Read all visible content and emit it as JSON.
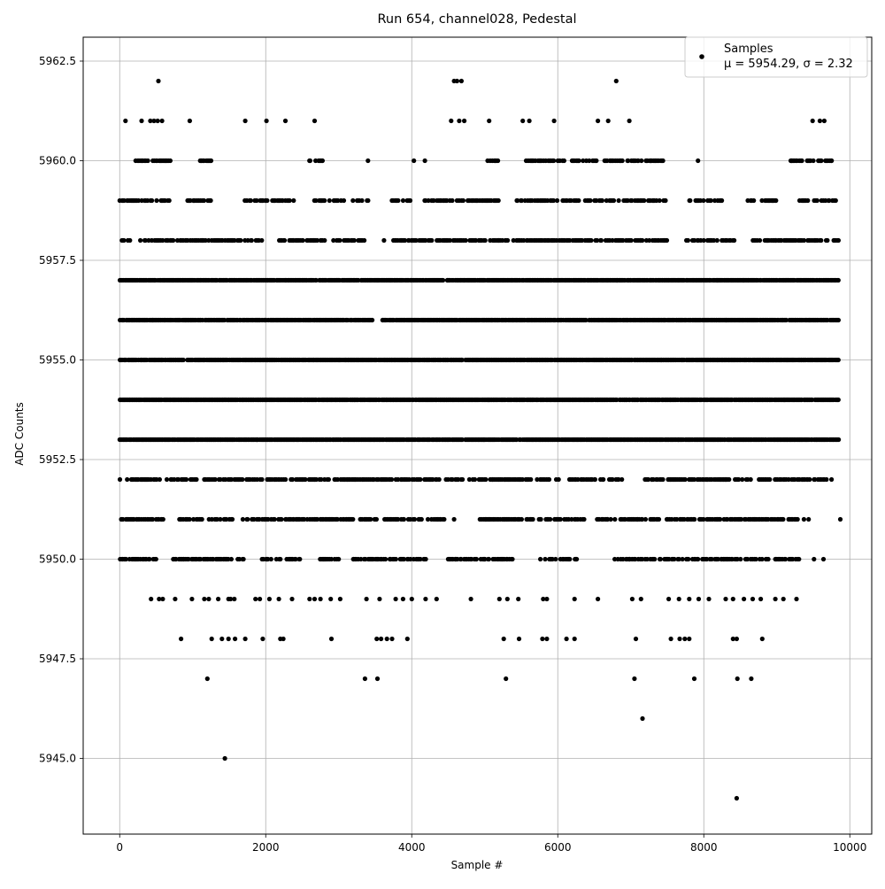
{
  "chart_data": {
    "type": "scatter",
    "title": "Run 654, channel028, Pedestal",
    "xlabel": "Sample #",
    "ylabel": "ADC Counts",
    "xlim": [
      -500,
      10300
    ],
    "ylim": [
      5943.1,
      5963.1
    ],
    "xticks": [
      0,
      2000,
      4000,
      6000,
      8000,
      10000
    ],
    "xtick_labels": [
      "0",
      "2000",
      "4000",
      "6000",
      "8000",
      "10000"
    ],
    "yticks": [
      5945.0,
      5947.5,
      5950.0,
      5952.5,
      5955.0,
      5957.5,
      5960.0,
      5962.5
    ],
    "ytick_labels": [
      "5945.0",
      "5947.5",
      "5950.0",
      "5952.5",
      "5955.0",
      "5957.5",
      "5960.0",
      "5962.5"
    ],
    "grid": true,
    "marker_color": "#000000",
    "legend": {
      "position": "top-right",
      "label": "Samples",
      "stats": "μ = 5954.29, σ = 2.32"
    },
    "sample_count": 9850,
    "summary": {
      "mean": 5954.29,
      "sigma": 2.32
    },
    "series": [
      {
        "name": "Samples",
        "points": [
          [
            530,
            5962
          ],
          [
            4580,
            5962
          ],
          [
            4620,
            5962
          ],
          [
            4680,
            5962
          ],
          [
            6800,
            5962
          ],
          [
            80,
            5961
          ],
          [
            300,
            5961
          ],
          [
            420,
            5961
          ],
          [
            470,
            5961
          ],
          [
            520,
            5961
          ],
          [
            580,
            5961
          ],
          [
            960,
            5961
          ],
          [
            1720,
            5961
          ],
          [
            2010,
            5961
          ],
          [
            2270,
            5961
          ],
          [
            2670,
            5961
          ],
          [
            4540,
            5961
          ],
          [
            4650,
            5961
          ],
          [
            4720,
            5961
          ],
          [
            5060,
            5961
          ],
          [
            5520,
            5961
          ],
          [
            5610,
            5961
          ],
          [
            5950,
            5961
          ],
          [
            6550,
            5961
          ],
          [
            6690,
            5961
          ],
          [
            6980,
            5961
          ],
          [
            9490,
            5961
          ],
          [
            9590,
            5961
          ],
          [
            9650,
            5961
          ],
          [
            2740,
            5960
          ],
          [
            3400,
            5960
          ],
          [
            4030,
            5960
          ],
          [
            4180,
            5960
          ],
          [
            5040,
            5960
          ],
          [
            5180,
            5960
          ],
          [
            7270,
            5960
          ],
          [
            7920,
            5960
          ],
          [
            9200,
            5960
          ],
          [
            1010,
            5959
          ],
          [
            2230,
            5959
          ],
          [
            2760,
            5959
          ],
          [
            3950,
            5959
          ],
          [
            4830,
            5959
          ],
          [
            5620,
            5959
          ],
          [
            7000,
            5959
          ],
          [
            8150,
            5959
          ],
          [
            8950,
            5959
          ],
          [
            1550,
            5958
          ],
          [
            2210,
            5958
          ],
          [
            3620,
            5958
          ],
          [
            3750,
            5958
          ],
          [
            4870,
            5958
          ],
          [
            7130,
            5958
          ],
          [
            8400,
            5958
          ],
          [
            8870,
            5958
          ],
          [
            4490,
            5957
          ],
          [
            6810,
            5957
          ],
          [
            8190,
            5957
          ],
          [
            8550,
            5957
          ],
          [
            450,
            5956
          ],
          [
            3600,
            5956
          ],
          [
            8310,
            5956
          ],
          [
            2100,
            5955
          ],
          [
            4680,
            5955
          ],
          [
            7420,
            5955
          ],
          [
            3220,
            5954
          ],
          [
            5050,
            5954
          ],
          [
            9110,
            5954
          ],
          [
            1880,
            5953
          ],
          [
            4990,
            5953
          ],
          [
            7650,
            5953
          ],
          [
            1160,
            5952
          ],
          [
            3480,
            5952
          ],
          [
            4790,
            5952
          ],
          [
            8300,
            5952
          ],
          [
            9750,
            5952
          ],
          [
            500,
            5951
          ],
          [
            1900,
            5951
          ],
          [
            4350,
            5951
          ],
          [
            4580,
            5951
          ],
          [
            5960,
            5951
          ],
          [
            6310,
            5951
          ],
          [
            6680,
            5951
          ],
          [
            7090,
            5951
          ],
          [
            8120,
            5951
          ],
          [
            9870,
            5951
          ],
          [
            40,
            5950
          ],
          [
            200,
            5950
          ],
          [
            460,
            5950
          ],
          [
            880,
            5950
          ],
          [
            1180,
            5950
          ],
          [
            2020,
            5950
          ],
          [
            3700,
            5950
          ],
          [
            4600,
            5950
          ],
          [
            5000,
            5950
          ],
          [
            5300,
            5950
          ],
          [
            6250,
            5950
          ],
          [
            6980,
            5950
          ],
          [
            7920,
            5950
          ],
          [
            8460,
            5950
          ],
          [
            9020,
            5950
          ],
          [
            9510,
            5950
          ],
          [
            9640,
            5950
          ],
          [
            430,
            5949
          ],
          [
            540,
            5949
          ],
          [
            590,
            5949
          ],
          [
            760,
            5949
          ],
          [
            990,
            5949
          ],
          [
            1160,
            5949
          ],
          [
            1220,
            5949
          ],
          [
            1350,
            5949
          ],
          [
            1490,
            5949
          ],
          [
            1520,
            5949
          ],
          [
            1570,
            5949
          ],
          [
            1860,
            5949
          ],
          [
            1920,
            5949
          ],
          [
            2050,
            5949
          ],
          [
            2180,
            5949
          ],
          [
            2360,
            5949
          ],
          [
            2600,
            5949
          ],
          [
            2670,
            5949
          ],
          [
            2750,
            5949
          ],
          [
            2890,
            5949
          ],
          [
            3020,
            5949
          ],
          [
            3380,
            5949
          ],
          [
            3560,
            5949
          ],
          [
            3780,
            5949
          ],
          [
            3880,
            5949
          ],
          [
            4000,
            5949
          ],
          [
            4190,
            5949
          ],
          [
            4340,
            5949
          ],
          [
            4810,
            5949
          ],
          [
            5200,
            5949
          ],
          [
            5310,
            5949
          ],
          [
            5460,
            5949
          ],
          [
            5800,
            5949
          ],
          [
            5850,
            5949
          ],
          [
            6230,
            5949
          ],
          [
            6550,
            5949
          ],
          [
            7020,
            5949
          ],
          [
            7140,
            5949
          ],
          [
            7520,
            5949
          ],
          [
            7660,
            5949
          ],
          [
            7800,
            5949
          ],
          [
            7930,
            5949
          ],
          [
            8070,
            5949
          ],
          [
            8300,
            5949
          ],
          [
            8400,
            5949
          ],
          [
            8550,
            5949
          ],
          [
            8670,
            5949
          ],
          [
            8780,
            5949
          ],
          [
            8980,
            5949
          ],
          [
            9090,
            5949
          ],
          [
            9270,
            5949
          ],
          [
            840,
            5948
          ],
          [
            1260,
            5948
          ],
          [
            1400,
            5948
          ],
          [
            1490,
            5948
          ],
          [
            1580,
            5948
          ],
          [
            1720,
            5948
          ],
          [
            1960,
            5948
          ],
          [
            2200,
            5948
          ],
          [
            2240,
            5948
          ],
          [
            2900,
            5948
          ],
          [
            3520,
            5948
          ],
          [
            3580,
            5948
          ],
          [
            3660,
            5948
          ],
          [
            3730,
            5948
          ],
          [
            3940,
            5948
          ],
          [
            5260,
            5948
          ],
          [
            5470,
            5948
          ],
          [
            5790,
            5948
          ],
          [
            5850,
            5948
          ],
          [
            6120,
            5948
          ],
          [
            6230,
            5948
          ],
          [
            7070,
            5948
          ],
          [
            7550,
            5948
          ],
          [
            7670,
            5948
          ],
          [
            7740,
            5948
          ],
          [
            7800,
            5948
          ],
          [
            8400,
            5948
          ],
          [
            8450,
            5948
          ],
          [
            8800,
            5948
          ],
          [
            1200,
            5947
          ],
          [
            3360,
            5947
          ],
          [
            3530,
            5947
          ],
          [
            5290,
            5947
          ],
          [
            7050,
            5947
          ],
          [
            7870,
            5947
          ],
          [
            8460,
            5947
          ],
          [
            8650,
            5947
          ],
          [
            7160,
            5946
          ],
          [
            1440,
            5945
          ],
          [
            8450,
            5944
          ]
        ]
      }
    ],
    "dense_levels": [
      {
        "y": 5953,
        "x_range": [
          0,
          9850
        ],
        "gaps": []
      },
      {
        "y": 5954,
        "x_range": [
          0,
          9850
        ],
        "gaps": []
      },
      {
        "y": 5955,
        "x_range": [
          0,
          9850
        ],
        "gaps": []
      },
      {
        "y": 5956,
        "x_range": [
          0,
          9850
        ],
        "gaps": [
          [
            3460,
            3580
          ]
        ]
      },
      {
        "y": 5957,
        "x_range": [
          0,
          9850
        ],
        "gaps": [
          [
            4430,
            4470
          ]
        ]
      },
      {
        "y": 5958,
        "x_range": [
          0,
          9850
        ],
        "gaps": [
          [
            2000,
            2180
          ],
          [
            3350,
            3740
          ],
          [
            7500,
            7750
          ],
          [
            8430,
            8640
          ]
        ]
      },
      {
        "y": 5952,
        "x_range": [
          0,
          9750
        ],
        "gaps": [
          [
            30,
            90
          ],
          [
            550,
            640
          ],
          [
            1060,
            1130
          ],
          [
            2870,
            2920
          ],
          [
            4700,
            4820
          ],
          [
            6050,
            6150
          ],
          [
            6900,
            7190
          ],
          [
            9680,
            9750
          ]
        ]
      },
      {
        "y": 5951,
        "x_range": [
          0,
          9850
        ],
        "gaps": [
          [
            600,
            790
          ],
          [
            1580,
            1650
          ],
          [
            4460,
            4890
          ],
          [
            5660,
            5720
          ],
          [
            6370,
            6530
          ],
          [
            7380,
            7480
          ],
          [
            9450,
            9870
          ]
        ]
      },
      {
        "y": 5959,
        "x_range": [
          0,
          9800
        ],
        "gaps": [
          [
            700,
            920
          ],
          [
            1270,
            1700
          ],
          [
            2400,
            2600
          ],
          [
            3420,
            3720
          ],
          [
            4000,
            4160
          ],
          [
            5200,
            5430
          ],
          [
            7500,
            7790
          ],
          [
            8250,
            8570
          ],
          [
            9000,
            9300
          ]
        ]
      },
      {
        "y": 5960,
        "x_range": [
          200,
          9750
        ],
        "gaps": [
          [
            700,
            1050
          ],
          [
            1270,
            2590
          ],
          [
            2780,
            5050
          ],
          [
            5200,
            5550
          ],
          [
            6100,
            6180
          ],
          [
            7450,
            9180
          ]
        ]
      },
      {
        "y": 5950,
        "x_range": [
          0,
          9300
        ],
        "gaps": [
          [
            500,
            720
          ],
          [
            1720,
            1940
          ],
          [
            2480,
            2710
          ],
          [
            3000,
            3170
          ],
          [
            4200,
            4480
          ],
          [
            5400,
            5730
          ],
          [
            6300,
            6770
          ],
          [
            8880,
            8970
          ]
        ]
      }
    ]
  }
}
